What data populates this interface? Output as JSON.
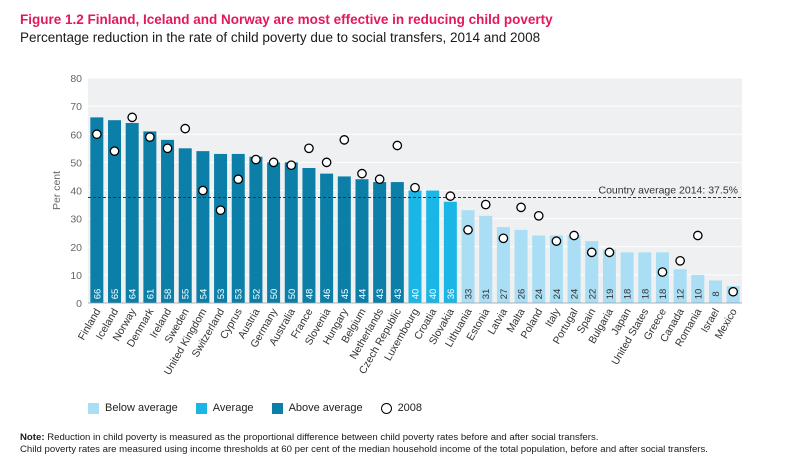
{
  "title": "Figure 1.2 Finland, Iceland and Norway are most effective in reducing child poverty",
  "subtitle": "Percentage reduction in the rate of child poverty due to social transfers, 2014 and 2008",
  "colors": {
    "below": "#a9def4",
    "average": "#1ab7e6",
    "above": "#0c7fa8",
    "title": "#e2185b"
  },
  "legend": {
    "below": "Below average",
    "average": "Average",
    "above": "Above average",
    "y2008": "2008"
  },
  "note": {
    "label": "Note:",
    "line1": "Reduction in child poverty is measured as the proportional difference between child poverty rates before and after social transfers.",
    "line2": "Child poverty rates are measured using income thresholds at 60 per cent of the median household income of the total population, before and after social transfers."
  },
  "chart_data": {
    "type": "bar",
    "ylabel": "Per cent",
    "ylim": [
      0,
      80
    ],
    "yticks": [
      0,
      10,
      20,
      30,
      40,
      50,
      60,
      70,
      80
    ],
    "reference_label": "Country average 2014: 37.5%",
    "reference_value": 37.5,
    "categories": [
      "Finland",
      "Iceland",
      "Norway",
      "Denmark",
      "Ireland",
      "Sweden",
      "United Kingdom",
      "Switzerland",
      "Cyprus",
      "Austria",
      "Germany",
      "Australia",
      "France",
      "Slovenia",
      "Hungary",
      "Belgium",
      "Netherlands",
      "Czech Republic",
      "Luxembourg",
      "Croatia",
      "Slovakia",
      "Lithuania",
      "Estonia",
      "Latvia",
      "Malta",
      "Poland",
      "Italy",
      "Portugal",
      "Spain",
      "Bulgaria",
      "Japan",
      "United States",
      "Greece",
      "Canada",
      "Romania",
      "Israel",
      "Mexico"
    ],
    "values_2014": [
      66,
      65,
      64,
      61,
      58,
      55,
      54,
      53,
      53,
      52,
      50,
      50,
      48,
      46,
      45,
      44,
      43,
      43,
      40,
      40,
      36,
      33,
      31,
      27,
      26,
      24,
      24,
      24,
      22,
      19,
      18,
      18,
      18,
      12,
      10,
      8,
      6
    ],
    "bar_labels": [
      "66",
      "65",
      "64",
      "61",
      "58",
      "55",
      "54",
      "53",
      "53",
      "52",
      "50",
      "50",
      "48",
      "46",
      "45",
      "44",
      "43",
      "43",
      "40",
      "40",
      "36",
      "33",
      "31",
      "27",
      "26",
      "24",
      "24",
      "24",
      "22",
      "19",
      "18",
      "18",
      "18",
      "12",
      "10",
      "8",
      "6"
    ],
    "groups": [
      "above",
      "above",
      "above",
      "above",
      "above",
      "above",
      "above",
      "above",
      "above",
      "above",
      "above",
      "above",
      "above",
      "above",
      "above",
      "above",
      "above",
      "above",
      "average",
      "average",
      "average",
      "below",
      "below",
      "below",
      "below",
      "below",
      "below",
      "below",
      "below",
      "below",
      "below",
      "below",
      "below",
      "below",
      "below",
      "below",
      "below"
    ],
    "values_2008": [
      60,
      54,
      66,
      59,
      55,
      62,
      40,
      33,
      44,
      51,
      50,
      49,
      55,
      50,
      58,
      46,
      44,
      56,
      41,
      null,
      38,
      26,
      35,
      23,
      34,
      31,
      22,
      24,
      18,
      18,
      null,
      null,
      11,
      15,
      24,
      null,
      4
    ]
  }
}
